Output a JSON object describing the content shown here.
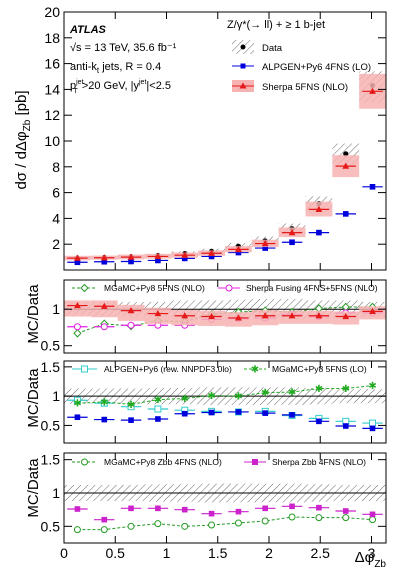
{
  "chart_data": {
    "type": "scatter",
    "x": [
      0.131,
      0.393,
      0.654,
      0.916,
      1.178,
      1.44,
      1.702,
      1.963,
      2.225,
      2.487,
      2.749,
      3.01
    ],
    "xlabel": "Δφ",
    "xlabel_sub": "Zb",
    "xticks": [
      "0",
      "0.5",
      "1",
      "1.5",
      "2",
      "2.5",
      "3"
    ],
    "annotations": {
      "atlas": "ATLAS",
      "energy": "√s = 13 TeV, 35.6 fb⁻¹",
      "jets": "anti-k",
      "jets_sub": "t",
      "jets_rest": " jets, R = 0.4",
      "cuts_pt": "p",
      "cuts_pt_sub": "T",
      "cuts_pt_sup": "jet",
      "cuts_rest": ">20 GeV, |y",
      "cuts_y_sup": "jet",
      "cuts_end": "|<2.5",
      "process": "Z/γ*(→ ll) + ≥ 1 b-jet"
    },
    "panels": [
      {
        "id": "main",
        "ylabel": "dσ / dΔφ",
        "ylabel_sub": "Zb",
        "ylabel_unit": " [pb]",
        "ylim": [
          0,
          20
        ],
        "yticks": [
          "2",
          "4",
          "6",
          "8",
          "10",
          "12",
          "14",
          "16",
          "18",
          "20"
        ],
        "band": {
          "name": "Data",
          "lo": [
            0.85,
            0.9,
            0.95,
            1.0,
            1.1,
            1.25,
            1.55,
            1.9,
            2.8,
            4.6,
            8.2,
            13.0
          ],
          "hi": [
            1.0,
            1.05,
            1.15,
            1.25,
            1.45,
            1.65,
            2.1,
            2.6,
            3.6,
            5.7,
            9.8,
            15.4
          ]
        },
        "series": [
          {
            "name": "Data",
            "values": [
              0.93,
              0.97,
              1.04,
              1.12,
              1.27,
              1.45,
              1.83,
              2.25,
              3.2,
              5.15,
              9.0,
              14.3
            ],
            "color": "#000000",
            "marker": "dot"
          },
          {
            "name": "ALPGEN+Py6 4FNS (LO)",
            "values": [
              0.6,
              0.64,
              0.66,
              0.74,
              0.9,
              1.05,
              1.35,
              1.7,
              2.15,
              2.9,
              4.35,
              6.45
            ],
            "color": "#0000dd",
            "marker": "square",
            "bar": true
          },
          {
            "name": "Sherpa 5FNS (NLO)",
            "values": [
              0.92,
              0.95,
              1.0,
              1.05,
              1.15,
              1.3,
              1.6,
              2.05,
              2.9,
              4.7,
              8.05,
              13.85
            ],
            "color": "#e61919",
            "marker": "triangle",
            "bar": true,
            "band_color": "#f7b2b2",
            "band_lo": [
              0.75,
              0.8,
              0.82,
              0.88,
              0.95,
              1.1,
              1.38,
              1.78,
              2.55,
              4.15,
              7.2,
              12.5
            ],
            "band_hi": [
              1.1,
              1.12,
              1.2,
              1.25,
              1.36,
              1.52,
              1.85,
              2.35,
              3.3,
              5.3,
              8.9,
              15.2
            ]
          }
        ]
      },
      {
        "id": "ratio1",
        "ylabel": "MC/Data",
        "ylim": [
          0.4,
          1.4
        ],
        "yticks": [
          "0.5",
          "1"
        ],
        "band": {
          "lo": [
            0.9,
            0.9,
            0.9,
            0.9,
            0.88,
            0.88,
            0.87,
            0.86,
            0.86,
            0.88,
            0.88,
            0.9
          ],
          "hi": [
            1.1,
            1.1,
            1.1,
            1.1,
            1.12,
            1.12,
            1.13,
            1.14,
            1.14,
            1.12,
            1.12,
            1.1
          ]
        },
        "series": [
          {
            "name": "MGaMC+Py8 5FNS (NLO)",
            "values": [
              0.67,
              0.8,
              0.77,
              0.84,
              0.83,
              0.93,
              0.96,
              0.98,
              0.96,
              1.01,
              1.03,
              1.03
            ],
            "color": "#229922",
            "marker": "diamond-open",
            "dashed": true
          },
          {
            "name": "Sherpa Fusing 4FNS+5FNS (NLO)",
            "values": [
              0.76,
              0.76,
              0.78,
              0.78,
              0.78,
              0.86,
              0.87,
              0.88,
              0.93,
              0.9,
              0.95,
              0.95
            ],
            "color": "#e020e0",
            "marker": "circle-open",
            "bar": true
          },
          {
            "name": "Sherpa 5FNS (NLO)",
            "values": [
              1.05,
              1.04,
              0.98,
              0.94,
              0.91,
              0.9,
              0.88,
              0.91,
              0.91,
              0.91,
              0.9,
              0.97
            ],
            "color": "#e61919",
            "marker": "triangle",
            "bar": true,
            "band_color": "#f7b2b2",
            "band_lo": [
              0.9,
              0.89,
              0.84,
              0.8,
              0.78,
              0.77,
              0.76,
              0.78,
              0.8,
              0.8,
              0.79,
              0.86
            ],
            "band_hi": [
              1.12,
              1.12,
              1.06,
              1.02,
              0.99,
              0.98,
              0.96,
              0.99,
              0.98,
              0.98,
              0.97,
              1.04
            ]
          }
        ]
      },
      {
        "id": "ratio2",
        "ylabel": "MC/Data",
        "ylim": [
          0.2,
          1.6
        ],
        "yticks": [
          "0.5",
          "1",
          "1.5"
        ],
        "band": {
          "lo": [
            0.87,
            0.87,
            0.87,
            0.86,
            0.86,
            0.85,
            0.85,
            0.85,
            0.85,
            0.86,
            0.88,
            0.88
          ],
          "hi": [
            1.13,
            1.13,
            1.13,
            1.14,
            1.14,
            1.15,
            1.15,
            1.15,
            1.15,
            1.14,
            1.12,
            1.12
          ]
        },
        "series": [
          {
            "name": "ALPGEN+Py6 (rew. NNPDF3.0lo)",
            "values": [
              0.93,
              0.88,
              0.82,
              0.78,
              0.76,
              0.74,
              0.73,
              0.74,
              0.67,
              0.62,
              0.57,
              0.54
            ],
            "color": "#33cccc",
            "marker": "square-open",
            "bar": true
          },
          {
            "name": "MGaMC+Py8 5FNS (LO)",
            "values": [
              0.88,
              0.9,
              0.86,
              0.94,
              0.96,
              1.01,
              1.0,
              1.06,
              1.07,
              1.13,
              1.13,
              1.18
            ],
            "color": "#22aa22",
            "marker": "star",
            "dashed": true
          },
          {
            "name": "ALPGEN+Py6 4FNS (LO)",
            "values": [
              0.64,
              0.6,
              0.59,
              0.61,
              0.7,
              0.72,
              0.73,
              0.71,
              0.68,
              0.57,
              0.49,
              0.45
            ],
            "color": "#0000dd",
            "marker": "square",
            "bar": true
          }
        ]
      },
      {
        "id": "ratio3",
        "ylabel": "MC/Data",
        "ylim": [
          0.25,
          1.6
        ],
        "yticks": [
          "0.5",
          "1",
          "1.5"
        ],
        "band": {
          "lo": [
            0.88,
            0.88,
            0.88,
            0.87,
            0.87,
            0.86,
            0.86,
            0.86,
            0.86,
            0.87,
            0.88,
            0.88
          ],
          "hi": [
            1.12,
            1.12,
            1.12,
            1.13,
            1.13,
            1.14,
            1.14,
            1.14,
            1.14,
            1.13,
            1.12,
            1.12
          ]
        },
        "series": [
          {
            "name": "MGaMC+Py8 Zbb 4FNS (NLO)",
            "values": [
              0.45,
              0.45,
              0.5,
              0.54,
              0.5,
              0.52,
              0.55,
              0.58,
              0.64,
              0.63,
              0.63,
              0.6
            ],
            "color": "#229922",
            "marker": "circle-open",
            "dashed": true
          },
          {
            "name": "Sherpa Zbb 4FNS (NLO)",
            "values": [
              0.76,
              0.6,
              0.77,
              0.77,
              0.75,
              0.69,
              0.72,
              0.77,
              0.8,
              0.78,
              0.73,
              0.68
            ],
            "color": "#cc22cc",
            "marker": "square",
            "bar": true
          }
        ]
      }
    ]
  }
}
